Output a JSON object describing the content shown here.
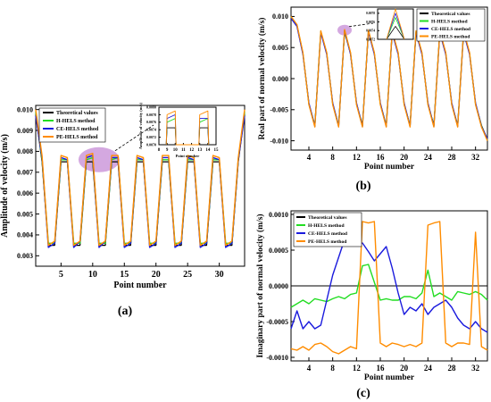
{
  "colors": {
    "theoretical": "#000000",
    "h_hels": "#22dd22",
    "ce_hels": "#1a1add",
    "pe_hels": "#ff8c00",
    "highlight": "#c58bd6"
  },
  "panels": {
    "a": "(a)",
    "b": "(b)",
    "c": "(c)"
  },
  "chart_data": [
    {
      "type": "line",
      "panel": "(a)",
      "xlabel": "Point number",
      "ylabel": "Amplitude of velocity (m/s)",
      "xlim": [
        1,
        34
      ],
      "ylim": [
        0.0025,
        0.0102
      ],
      "xticks": [
        5,
        10,
        15,
        20,
        25,
        30
      ],
      "yticks": [
        0.003,
        0.004,
        0.005,
        0.006,
        0.007,
        0.008,
        0.009,
        0.01
      ],
      "ytick_labels": [
        "0.003",
        "0.004",
        "0.005",
        "0.006",
        "0.007",
        "0.008",
        "0.009",
        "0.010"
      ],
      "legend": [
        "Theoretical values",
        "H-HELS method",
        "CE-HELS method",
        "PE-HELS method"
      ],
      "x": [
        1,
        2,
        3,
        4,
        5,
        6,
        7,
        8,
        9,
        10,
        11,
        12,
        13,
        14,
        15,
        16,
        17,
        18,
        19,
        20,
        21,
        22,
        23,
        24,
        25,
        26,
        27,
        28,
        29,
        30,
        31,
        32,
        33,
        34
      ],
      "series": [
        {
          "name": "Theoretical values",
          "values": [
            0.0098,
            0.0075,
            0.0035,
            0.0035,
            0.0075,
            0.0075,
            0.0035,
            0.0035,
            0.0075,
            0.0075,
            0.0035,
            0.0035,
            0.0075,
            0.0075,
            0.0035,
            0.0035,
            0.0075,
            0.0075,
            0.0035,
            0.0035,
            0.0075,
            0.0075,
            0.0035,
            0.0035,
            0.0075,
            0.0075,
            0.0035,
            0.0035,
            0.0075,
            0.0075,
            0.0035,
            0.0035,
            0.0075,
            0.0098
          ]
        },
        {
          "name": "H-HELS method",
          "values": [
            0.0099,
            0.0076,
            0.0036,
            0.0036,
            0.0076,
            0.0076,
            0.0036,
            0.0036,
            0.0076,
            0.0077,
            0.0036,
            0.0036,
            0.0076,
            0.0077,
            0.0036,
            0.0036,
            0.0076,
            0.0076,
            0.0036,
            0.0036,
            0.0076,
            0.0076,
            0.0036,
            0.0036,
            0.0076,
            0.0076,
            0.0036,
            0.0036,
            0.0076,
            0.0076,
            0.0036,
            0.0036,
            0.0076,
            0.0099
          ]
        },
        {
          "name": "CE-HELS method",
          "values": [
            0.0097,
            0.0077,
            0.0034,
            0.0036,
            0.0077,
            0.0076,
            0.0034,
            0.0037,
            0.0077,
            0.0078,
            0.0034,
            0.0037,
            0.0077,
            0.0077,
            0.0034,
            0.0036,
            0.0077,
            0.0076,
            0.0034,
            0.0036,
            0.0077,
            0.0077,
            0.0034,
            0.0036,
            0.0077,
            0.0076,
            0.0034,
            0.0036,
            0.0077,
            0.0076,
            0.0034,
            0.0036,
            0.0076,
            0.0097
          ]
        },
        {
          "name": "PE-HELS method",
          "values": [
            0.01,
            0.0078,
            0.0035,
            0.0037,
            0.0078,
            0.0077,
            0.0035,
            0.0037,
            0.0078,
            0.0079,
            0.0035,
            0.0037,
            0.0078,
            0.0078,
            0.0035,
            0.0037,
            0.0078,
            0.0077,
            0.0035,
            0.0037,
            0.0078,
            0.0078,
            0.0035,
            0.0037,
            0.0078,
            0.0077,
            0.0035,
            0.0037,
            0.0078,
            0.0077,
            0.0035,
            0.0037,
            0.0077,
            0.01
          ]
        }
      ],
      "inset": {
        "xlabel": "Point number",
        "ylabel": "Amplitude of velocity (m/s)",
        "xlim": [
          8,
          15
        ],
        "ylim": [
          0.007,
          0.008
        ],
        "xticks": [
          8,
          9,
          10,
          11,
          12,
          13,
          14,
          15
        ],
        "yticks": [
          0.007,
          0.0072,
          0.0074,
          0.0076,
          0.0078,
          0.008
        ],
        "ytick_labels": [
          "0.0070",
          "0.0072",
          "0.0074",
          "0.0076",
          "0.0078",
          "0.0080"
        ],
        "x": [
          8.9,
          9.0,
          10.0,
          10.1,
          12.9,
          13.0,
          14.0,
          14.1
        ],
        "series": [
          {
            "name": "Theoretical values",
            "values": [
              0.007,
              0.00745,
              0.00745,
              0.007,
              0.007,
              0.00745,
              0.00745,
              0.007
            ]
          },
          {
            "name": "H-HELS method",
            "values": [
              0.007,
              0.0076,
              0.0077,
              0.007,
              0.007,
              0.0076,
              0.0077,
              0.007
            ]
          },
          {
            "name": "CE-HELS method",
            "values": [
              0.007,
              0.0077,
              0.0078,
              0.007,
              0.007,
              0.0077,
              0.0077,
              0.007
            ]
          },
          {
            "name": "PE-HELS method",
            "values": [
              0.007,
              0.0078,
              0.0079,
              0.007,
              0.007,
              0.0078,
              0.0079,
              0.007
            ]
          }
        ]
      }
    },
    {
      "type": "line",
      "panel": "(b)",
      "xlabel": "Point number",
      "ylabel": "Real part of normal velocity (m/s)",
      "xlim": [
        1,
        34
      ],
      "ylim": [
        -0.0115,
        0.0115
      ],
      "xticks": [
        4,
        8,
        12,
        16,
        20,
        24,
        28,
        32
      ],
      "yticks": [
        -0.01,
        -0.005,
        0.0,
        0.005,
        0.01
      ],
      "ytick_labels": [
        "-0.010",
        "-0.005",
        "0.000",
        "0.005",
        "0.010"
      ],
      "legend": [
        "Theoretical values",
        "H-HELS method",
        "CE-HELS method",
        "PE-HELS method"
      ],
      "x": [
        1,
        2,
        3,
        4,
        5,
        6,
        7,
        8,
        9,
        10,
        11,
        12,
        13,
        14,
        15,
        16,
        17,
        18,
        19,
        20,
        21,
        22,
        23,
        24,
        25,
        26,
        27,
        28,
        29,
        30,
        31,
        32,
        33,
        34
      ],
      "series": [
        {
          "name": "Theoretical values",
          "values": [
            0.0098,
            0.0085,
            0.004,
            -0.004,
            -0.0075,
            0.0075,
            0.004,
            -0.004,
            -0.0075,
            0.0075,
            0.004,
            -0.004,
            -0.0075,
            0.0075,
            0.004,
            -0.004,
            -0.0075,
            0.0075,
            0.004,
            -0.004,
            -0.0075,
            0.0075,
            0.004,
            -0.004,
            -0.0075,
            0.0075,
            0.004,
            -0.004,
            -0.0075,
            0.0075,
            0.004,
            -0.004,
            -0.0075,
            -0.0098
          ]
        },
        {
          "name": "H-HELS method",
          "values": [
            0.0099,
            0.0086,
            0.0041,
            -0.0041,
            -0.0076,
            0.0076,
            0.0041,
            -0.0041,
            -0.0076,
            0.0077,
            0.0041,
            -0.0041,
            -0.0076,
            0.0077,
            0.0041,
            -0.0041,
            -0.0076,
            0.0076,
            0.0041,
            -0.0041,
            -0.0076,
            0.0076,
            0.0041,
            -0.0041,
            -0.0076,
            0.0076,
            0.0041,
            -0.0041,
            -0.0076,
            0.0076,
            0.0041,
            -0.0041,
            -0.0076,
            -0.0099
          ]
        },
        {
          "name": "CE-HELS method",
          "values": [
            0.0097,
            0.0084,
            0.0039,
            -0.0039,
            -0.0077,
            0.0074,
            0.0039,
            -0.0039,
            -0.0077,
            0.0078,
            0.0039,
            -0.0039,
            -0.0077,
            0.0076,
            0.0039,
            -0.0039,
            -0.0077,
            0.0074,
            0.0039,
            -0.0039,
            -0.0077,
            0.0074,
            0.0039,
            -0.0039,
            -0.0077,
            0.0074,
            0.0039,
            -0.0039,
            -0.0077,
            0.0074,
            0.0039,
            -0.0039,
            -0.0077,
            -0.0097
          ]
        },
        {
          "name": "PE-HELS method",
          "values": [
            0.01,
            0.0087,
            0.0042,
            -0.0042,
            -0.0078,
            0.0077,
            0.0042,
            -0.0042,
            -0.0078,
            0.0079,
            0.0042,
            -0.0042,
            -0.0078,
            0.0078,
            0.0042,
            -0.0042,
            -0.0078,
            0.0077,
            0.0042,
            -0.0042,
            -0.0078,
            0.0077,
            0.0042,
            -0.0042,
            -0.0078,
            0.0077,
            0.0042,
            -0.0042,
            -0.0078,
            0.0077,
            0.0042,
            -0.0042,
            -0.0078,
            -0.01
          ]
        }
      ],
      "inset": {
        "xlim": [
          9,
          11
        ],
        "ylim": [
          0.0072,
          0.0079
        ],
        "yticks": [
          0.0072,
          0.0074,
          0.0076,
          0.0078
        ],
        "ytick_labels": [
          "0.0072",
          "0.0074",
          "0.0076",
          "0.0078"
        ],
        "x": [
          9.5,
          10.0,
          10.5
        ],
        "series": [
          {
            "name": "Theoretical values",
            "values": [
              0.0072,
              0.0075,
              0.0072
            ]
          },
          {
            "name": "H-HELS method",
            "values": [
              0.0072,
              0.0077,
              0.0072
            ]
          },
          {
            "name": "CE-HELS method",
            "values": [
              0.0072,
              0.0078,
              0.0072
            ]
          },
          {
            "name": "PE-HELS method",
            "values": [
              0.0072,
              0.0079,
              0.0072
            ]
          }
        ]
      }
    },
    {
      "type": "line",
      "panel": "(c)",
      "xlabel": "Point number",
      "ylabel": "Imaginary part of normal velocity (m/s)",
      "xlim": [
        1,
        34
      ],
      "ylim": [
        -0.00105,
        0.00105
      ],
      "xticks": [
        4,
        8,
        12,
        16,
        20,
        24,
        28,
        32
      ],
      "yticks": [
        -0.001,
        -0.0005,
        0.0,
        0.0005,
        0.001
      ],
      "ytick_labels": [
        "-0.0010",
        "-0.0005",
        "0.0000",
        "0.0005",
        "0.0010"
      ],
      "legend": [
        "Theoretical values",
        "H-HELS method",
        "CE-HELS method",
        "PE-HELS method"
      ],
      "x": [
        1,
        2,
        3,
        4,
        5,
        6,
        7,
        8,
        9,
        10,
        11,
        12,
        13,
        14,
        15,
        16,
        17,
        18,
        19,
        20,
        21,
        22,
        23,
        24,
        25,
        26,
        27,
        28,
        29,
        30,
        31,
        32,
        33,
        34
      ],
      "series": [
        {
          "name": "Theoretical values",
          "values": [
            0,
            0,
            0,
            0,
            0,
            0,
            0,
            0,
            0,
            0,
            0,
            0,
            0,
            0,
            0,
            0,
            0,
            0,
            0,
            0,
            0,
            0,
            0,
            0,
            0,
            0,
            0,
            0,
            0,
            0,
            0,
            0,
            0,
            0
          ]
        },
        {
          "name": "H-HELS method",
          "values": [
            -0.0003,
            -0.00025,
            -0.0002,
            -0.00025,
            -0.00018,
            -0.0002,
            -0.00022,
            -0.00018,
            -0.00015,
            -0.00018,
            -0.00012,
            -0.0001,
            0.00028,
            0.0003,
            5e-05,
            -0.0002,
            -0.00018,
            -0.0002,
            -0.0002,
            -0.00015,
            -0.00015,
            -0.00018,
            -0.0001,
            0.00022,
            -0.00015,
            -0.0001,
            -0.00015,
            -0.0002,
            -8e-05,
            -0.0001,
            -0.00012,
            -8e-05,
            -0.00012,
            -0.0002
          ]
        },
        {
          "name": "CE-HELS method",
          "values": [
            -0.0006,
            -0.00035,
            -0.0006,
            -0.0005,
            -0.0006,
            -0.00055,
            -0.0002,
            0.00015,
            0.0004,
            0.00065,
            0.00062,
            0.00058,
            0.0006,
            0.00048,
            0.00035,
            0.00045,
            0.00055,
            0.00025,
            -0.0001,
            -0.0004,
            -0.0003,
            -0.00035,
            -0.00025,
            -0.0004,
            -0.0003,
            -0.00025,
            -0.0002,
            -0.0003,
            -0.00045,
            -0.00055,
            -0.0006,
            -0.0005,
            -0.0006,
            -0.00065
          ]
        },
        {
          "name": "PE-HELS method",
          "values": [
            -0.00088,
            -0.0009,
            -0.00085,
            -0.0009,
            -0.00082,
            -0.0008,
            -0.00085,
            -0.00092,
            -0.00095,
            -0.0009,
            -0.00085,
            -0.00088,
            0.0009,
            0.00088,
            0.0009,
            -0.0008,
            -0.00085,
            -0.0008,
            -0.00082,
            -0.00085,
            -0.00082,
            -0.00085,
            -0.0008,
            0.00085,
            0.00088,
            0.0009,
            -0.0008,
            -0.00085,
            -0.0008,
            -0.0008,
            -0.00082,
            0.00075,
            -0.00085,
            -0.0009
          ]
        }
      ]
    }
  ]
}
